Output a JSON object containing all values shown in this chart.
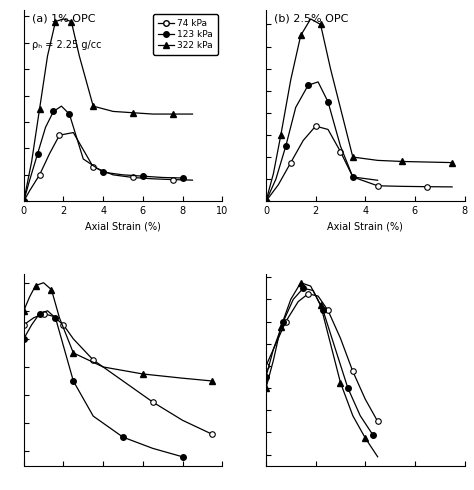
{
  "subplot_titles": [
    "(a) 1% OPC",
    "(b) 2.5% OPC"
  ],
  "rho_label": "ρₕ = 2.25 g/cc",
  "legend_labels": [
    "74 kPa",
    "123 kPa",
    "322 kPa"
  ],
  "xlabel": "Axial Strain (%)",
  "top_left": {
    "74kPa_x": [
      0,
      0.3,
      0.8,
      1.3,
      1.8,
      2.5,
      3.5,
      4.5,
      5.5,
      6.5,
      7.5,
      8.5
    ],
    "74kPa_y": [
      0,
      0.4,
      1.0,
      1.8,
      2.5,
      2.6,
      1.3,
      1.0,
      0.9,
      0.85,
      0.82,
      0.8
    ],
    "123kPa_x": [
      0,
      0.3,
      0.7,
      1.1,
      1.5,
      1.9,
      2.3,
      3.0,
      4.0,
      5.0,
      6.0,
      7.0,
      8.0
    ],
    "123kPa_y": [
      0,
      0.8,
      1.8,
      2.8,
      3.4,
      3.6,
      3.3,
      1.6,
      1.1,
      1.0,
      0.95,
      0.9,
      0.88
    ],
    "322kPa_x": [
      0,
      0.4,
      0.8,
      1.2,
      1.6,
      2.0,
      2.4,
      2.8,
      3.5,
      4.5,
      5.5,
      6.5,
      7.5,
      8.5
    ],
    "322kPa_y": [
      0,
      1.5,
      3.5,
      5.5,
      6.8,
      6.9,
      6.8,
      5.5,
      3.6,
      3.4,
      3.35,
      3.3,
      3.3,
      3.3
    ],
    "xlim": [
      0,
      10
    ],
    "ylim_auto": true
  },
  "top_right": {
    "74kPa_x": [
      0,
      0.5,
      1.0,
      1.5,
      2.0,
      2.5,
      3.0,
      3.5,
      4.5,
      5.5,
      6.5,
      7.5
    ],
    "74kPa_y": [
      0,
      1.5,
      3.5,
      5.5,
      6.8,
      6.5,
      4.5,
      2.2,
      1.4,
      1.35,
      1.32,
      1.3
    ],
    "123kPa_x": [
      0,
      0.4,
      0.8,
      1.2,
      1.7,
      2.1,
      2.5,
      3.0,
      3.5,
      4.5
    ],
    "123kPa_y": [
      0,
      2.0,
      5.0,
      8.5,
      10.5,
      10.8,
      9.0,
      5.0,
      2.2,
      1.9
    ],
    "322kPa_x": [
      0,
      0.3,
      0.6,
      1.0,
      1.4,
      1.8,
      2.2,
      2.6,
      3.5,
      4.5,
      5.5,
      6.5,
      7.5
    ],
    "322kPa_y": [
      0,
      2.5,
      6.0,
      11.0,
      15.0,
      16.5,
      16.0,
      12.0,
      4.0,
      3.7,
      3.6,
      3.55,
      3.5
    ],
    "xlim": [
      0,
      8
    ],
    "ylim_auto": true
  },
  "bot_left": {
    "74kPa_x": [
      0,
      0.5,
      1.0,
      1.5,
      2.0,
      2.5,
      3.5,
      5.0,
      6.5,
      8.0,
      9.5
    ],
    "74kPa_y": [
      17,
      17.5,
      17.8,
      17.6,
      17.0,
      16.0,
      14.5,
      13.0,
      11.5,
      10.2,
      9.2
    ],
    "123kPa_x": [
      0,
      0.4,
      0.8,
      1.2,
      1.6,
      2.0,
      2.5,
      3.5,
      5.0,
      6.5,
      8.0
    ],
    "123kPa_y": [
      16,
      17.0,
      17.8,
      18.0,
      17.5,
      15.5,
      13.0,
      10.5,
      9.0,
      8.2,
      7.6
    ],
    "322kPa_x": [
      0,
      0.3,
      0.6,
      1.0,
      1.4,
      1.8,
      2.5,
      4.0,
      6.0,
      8.0,
      9.5
    ],
    "322kPa_y": [
      18,
      19.0,
      19.8,
      20.0,
      19.5,
      17.5,
      15.0,
      14.0,
      13.5,
      13.2,
      13.0
    ],
    "xlim": [
      0,
      10
    ],
    "ylim_auto": true
  },
  "bot_right": {
    "74kPa_x": [
      0,
      0.4,
      0.8,
      1.3,
      1.7,
      2.1,
      2.5,
      3.0,
      3.5,
      4.0,
      4.5
    ],
    "74kPa_y": [
      12,
      14.0,
      16.0,
      17.8,
      18.5,
      18.3,
      17.0,
      14.5,
      11.5,
      9.0,
      7.0
    ],
    "123kPa_x": [
      0,
      0.3,
      0.7,
      1.1,
      1.5,
      1.9,
      2.3,
      2.8,
      3.3,
      3.8,
      4.3
    ],
    "123kPa_y": [
      11,
      13.5,
      16.0,
      18.0,
      19.0,
      18.8,
      17.0,
      13.5,
      10.0,
      7.5,
      5.8
    ],
    "322kPa_x": [
      0,
      0.3,
      0.6,
      1.0,
      1.4,
      1.8,
      2.2,
      2.6,
      3.0,
      3.5,
      4.0,
      4.5
    ],
    "322kPa_y": [
      10,
      12.5,
      15.5,
      18.0,
      19.5,
      19.2,
      17.5,
      14.0,
      10.5,
      7.5,
      5.5,
      3.8
    ],
    "xlim": [
      0,
      8
    ],
    "ylim_auto": true
  }
}
